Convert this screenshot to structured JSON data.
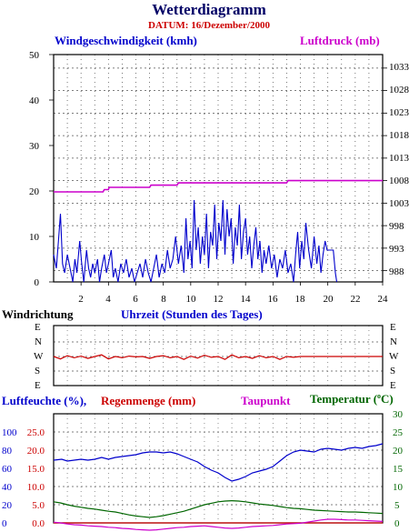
{
  "header": {
    "title": "Wetterdiagramm",
    "datum": "DATUM: 16/Dezember/2000"
  },
  "colors": {
    "wind": "#0000cc",
    "pressure": "#cc00cc",
    "direction": "#cc0000",
    "humidity": "#0000cc",
    "rain": "#cc0000",
    "dewpoint": "#cc00cc",
    "temperature": "#006600",
    "title": "#000066",
    "datum": "#cc0000"
  },
  "labels": {
    "wind_speed": "Windgeschwindigkeit (kmh)",
    "pressure": "Luftdruck (mb)",
    "wind_direction": "Windrichtung",
    "time": "Uhrzeit (Stunden des Tages)",
    "humidity": "Luftfeuchte (%),",
    "rain": "Regenmenge (mm)",
    "dewpoint": "Taupunkt",
    "temperature_prefix": "Temperatur (",
    "temperature_unit_c": "C",
    "temperature_suffix": ")"
  },
  "chart_data": [
    {
      "type": "line",
      "title": "",
      "xlabel": "Uhrzeit (Stunden des Tages)",
      "xlim": [
        0,
        24
      ],
      "x_ticks": [
        "2",
        "4",
        "6",
        "8",
        "10",
        "12",
        "14",
        "16",
        "18",
        "20",
        "22",
        "24"
      ],
      "ylabel": "Windgeschwindigkeit (kmh)",
      "ylim": [
        0,
        50
      ],
      "y_ticks": [
        "0",
        "10",
        "20",
        "30",
        "40",
        "50"
      ],
      "y2label": "Luftdruck (mb)",
      "y2lim": [
        985.5,
        1036
      ],
      "y2_ticks": [
        "988",
        "993",
        "998",
        "1003",
        "1008",
        "1013",
        "1018",
        "1023",
        "1028",
        "1033"
      ],
      "grid": true,
      "series": [
        {
          "name": "Windgeschwindigkeit (kmh)",
          "axis": "left",
          "x": [
            0.0,
            0.2,
            0.35,
            0.5,
            0.65,
            0.8,
            1.0,
            1.2,
            1.4,
            1.55,
            1.7,
            1.9,
            2.05,
            2.2,
            2.4,
            2.55,
            2.7,
            2.85,
            3.0,
            3.2,
            3.35,
            3.5,
            3.7,
            3.85,
            4.0,
            4.2,
            4.35,
            4.5,
            4.7,
            4.9,
            5.1,
            5.3,
            5.5,
            5.7,
            5.9,
            6.1,
            6.3,
            6.5,
            6.7,
            6.9,
            7.1,
            7.3,
            7.5,
            7.7,
            7.9,
            8.1,
            8.3,
            8.5,
            8.7,
            8.9,
            9.1,
            9.3,
            9.5,
            9.65,
            9.8,
            9.95,
            10.1,
            10.25,
            10.4,
            10.55,
            10.7,
            10.85,
            11.0,
            11.15,
            11.3,
            11.45,
            11.6,
            11.75,
            11.9,
            12.05,
            12.2,
            12.35,
            12.5,
            12.65,
            12.8,
            12.95,
            13.1,
            13.25,
            13.4,
            13.55,
            13.7,
            13.85,
            14.0,
            14.15,
            14.3,
            14.45,
            14.6,
            14.75,
            14.9,
            15.05,
            15.2,
            15.35,
            15.5,
            15.7,
            15.9,
            16.1,
            16.3,
            16.5,
            16.7,
            16.9,
            17.1,
            17.3,
            17.5,
            17.65,
            17.8,
            17.95,
            18.1,
            18.25,
            18.4,
            18.6,
            18.8,
            19.0,
            19.2,
            19.35,
            19.5,
            19.65,
            19.8,
            19.95,
            20.1,
            20.25,
            20.4,
            20.55,
            20.65
          ],
          "values": [
            6,
            3,
            9,
            15,
            4,
            2,
            6,
            3,
            0,
            5,
            2,
            9,
            4,
            0,
            7,
            3,
            1,
            4,
            2,
            5,
            0,
            3,
            6,
            2,
            4,
            7,
            1,
            3,
            0,
            4,
            2,
            5,
            1,
            3,
            0,
            2,
            4,
            1,
            5,
            2,
            0,
            3,
            6,
            1,
            4,
            2,
            7,
            3,
            5,
            10,
            4,
            8,
            2,
            14,
            5,
            9,
            3,
            18,
            7,
            12,
            4,
            10,
            6,
            15,
            3,
            11,
            8,
            17,
            5,
            13,
            9,
            18,
            6,
            16,
            10,
            14,
            4,
            12,
            8,
            17,
            5,
            11,
            14,
            6,
            10,
            3,
            8,
            12,
            5,
            9,
            2,
            7,
            4,
            8,
            3,
            6,
            1,
            5,
            3,
            7,
            2,
            4,
            0,
            6,
            11,
            3,
            9,
            5,
            13,
            7,
            3,
            10,
            4,
            8,
            2,
            6,
            9,
            7,
            7,
            7,
            7,
            2,
            0
          ]
        },
        {
          "name": "Luftdruck (mb)",
          "axis": "right",
          "x": [
            0.0,
            3.6,
            3.7,
            4.0,
            4.05,
            7.0,
            7.1,
            9.0,
            9.1,
            17.0,
            17.1,
            24.0
          ],
          "values": [
            1005.5,
            1005.5,
            1006.0,
            1006.0,
            1006.5,
            1006.5,
            1007.0,
            1007.0,
            1007.5,
            1007.5,
            1008.0,
            1008.0
          ]
        }
      ]
    },
    {
      "type": "line",
      "title": "",
      "ylabel": "Windrichtung",
      "y_categories": [
        "E",
        "N",
        "W",
        "S",
        "E"
      ],
      "xlim": [
        0,
        24
      ],
      "grid": true,
      "series": [
        {
          "name": "Windrichtung",
          "x": [
            0.0,
            0.5,
            1.0,
            1.5,
            2.0,
            2.5,
            3.0,
            3.5,
            4.0,
            4.5,
            5.0,
            5.5,
            6.0,
            6.5,
            7.0,
            7.5,
            8.0,
            8.5,
            9.0,
            9.5,
            10.0,
            10.5,
            11.0,
            11.5,
            12.0,
            12.5,
            13.0,
            13.5,
            14.0,
            14.5,
            15.0,
            15.5,
            16.0,
            16.5,
            17.0,
            17.5,
            18.0,
            24.0
          ],
          "values": [
            270,
            255,
            275,
            262,
            272,
            258,
            270,
            280,
            255,
            270,
            262,
            272,
            268,
            270,
            258,
            270,
            275,
            262,
            270,
            252,
            272,
            260,
            278,
            265,
            270,
            252,
            280,
            262,
            270,
            258,
            275,
            262,
            270,
            252,
            270,
            265,
            270,
            270
          ]
        }
      ]
    },
    {
      "type": "line",
      "title": "",
      "xlim": [
        0,
        24
      ],
      "ylabel": "Luftfeuchte (%), Regenmenge (mm)",
      "y_ticks_humidity": [
        "0",
        "20",
        "40",
        "60",
        "80",
        "100"
      ],
      "y_ticks_rain": [
        "0.0",
        "5.0",
        "10.0",
        "15.0",
        "20.0",
        "25.0"
      ],
      "y2label": "Taupunkt, Temperatur (C)",
      "y2lim": [
        0,
        30
      ],
      "y2_ticks": [
        "0",
        "5",
        "10",
        "15",
        "20",
        "25",
        "30"
      ],
      "grid": true,
      "series": [
        {
          "name": "Luftfeuchte (%)",
          "x": [
            0.0,
            0.6,
            1.0,
            1.5,
            2.0,
            2.5,
            3.0,
            3.5,
            4.0,
            4.5,
            5.0,
            5.5,
            6.0,
            6.5,
            7.0,
            7.5,
            8.0,
            8.5,
            9.0,
            9.5,
            10.0,
            10.5,
            11.0,
            11.5,
            12.0,
            12.5,
            13.0,
            13.5,
            14.0,
            14.5,
            15.0,
            15.5,
            16.0,
            16.5,
            17.0,
            17.5,
            18.0,
            18.5,
            19.0,
            19.5,
            20.0,
            20.5,
            21.0,
            21.5,
            22.0,
            22.5,
            23.0,
            23.5,
            24.0
          ],
          "values": [
            69,
            70,
            68,
            69,
            70,
            69,
            70,
            72,
            70,
            72,
            73,
            74,
            75,
            77,
            78,
            78,
            77,
            78,
            76,
            73,
            70,
            67,
            62,
            58,
            55,
            50,
            46,
            48,
            51,
            55,
            57,
            59,
            62,
            68,
            74,
            78,
            80,
            79,
            78,
            81,
            82,
            81,
            80,
            82,
            83,
            82,
            84,
            85,
            87
          ]
        },
        {
          "name": "Temperatur (C)",
          "x": [
            0.0,
            0.5,
            1.0,
            1.5,
            2.0,
            2.5,
            3.0,
            3.5,
            4.0,
            4.5,
            5.0,
            5.5,
            6.0,
            6.5,
            7.0,
            7.5,
            8.0,
            8.5,
            9.0,
            9.5,
            10.0,
            10.5,
            11.0,
            11.5,
            12.0,
            12.5,
            13.0,
            13.5,
            14.0,
            14.5,
            15.0,
            15.5,
            16.0,
            16.5,
            17.0,
            17.5,
            18.0,
            18.5,
            19.0,
            19.5,
            20.0,
            20.5,
            21.0,
            21.5,
            22.0,
            22.5,
            23.0,
            23.5,
            24.0
          ],
          "values": [
            5.8,
            5.5,
            5.0,
            4.6,
            4.3,
            4.0,
            3.8,
            3.5,
            3.2,
            3.0,
            2.6,
            2.2,
            1.9,
            1.7,
            1.5,
            1.7,
            2.0,
            2.4,
            2.8,
            3.2,
            3.8,
            4.4,
            5.0,
            5.4,
            5.8,
            6.0,
            6.1,
            6.0,
            5.8,
            5.5,
            5.2,
            5.0,
            4.8,
            4.5,
            4.2,
            4.0,
            3.9,
            3.7,
            3.5,
            3.4,
            3.3,
            3.2,
            3.1,
            3.0,
            3.0,
            2.9,
            2.8,
            2.7,
            2.6
          ]
        },
        {
          "name": "Taupunkt",
          "x": [
            0.0,
            0.5,
            1.0,
            1.5,
            2.0,
            2.5,
            3.0,
            3.5,
            4.0,
            4.5,
            5.0,
            5.5,
            6.0,
            6.5,
            7.0,
            7.5,
            8.0,
            8.5,
            9.0,
            9.5,
            10.0,
            10.5,
            11.0,
            11.5,
            12.0,
            12.5,
            13.0,
            13.5,
            14.0,
            14.5,
            15.0,
            15.5,
            16.0,
            16.5,
            17.0,
            17.5,
            18.0,
            18.5,
            19.0,
            19.5,
            20.0,
            20.5,
            21.0,
            21.5,
            22.0,
            22.5,
            23.0,
            23.5,
            24.0
          ],
          "values": [
            0.2,
            0.0,
            -0.3,
            -0.5,
            -0.6,
            -0.8,
            -0.9,
            -1.0,
            -1.2,
            -1.3,
            -1.5,
            -1.6,
            -1.8,
            -1.9,
            -2.0,
            -1.9,
            -1.7,
            -1.5,
            -1.3,
            -1.2,
            -1.0,
            -0.9,
            -0.8,
            -1.0,
            -1.2,
            -1.4,
            -1.5,
            -1.4,
            -1.2,
            -1.0,
            -0.9,
            -0.8,
            -0.7,
            -0.5,
            -0.3,
            -0.2,
            -0.1,
            0.2,
            0.5,
            0.8,
            1.0,
            1.0,
            0.9,
            0.8,
            0.8,
            0.7,
            0.6,
            0.5,
            0.4
          ]
        },
        {
          "name": "Regenmenge (mm)",
          "x": [
            0,
            24
          ],
          "values": [
            0,
            0
          ]
        }
      ]
    }
  ]
}
